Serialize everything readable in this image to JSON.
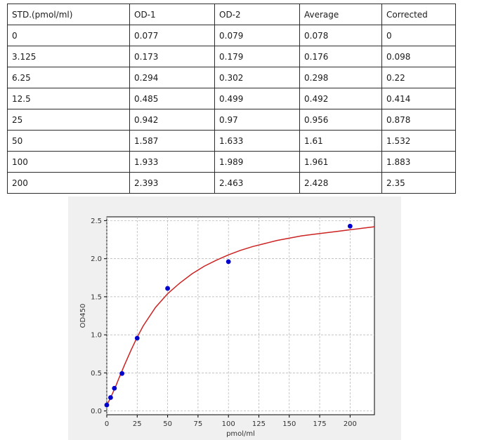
{
  "table": {
    "headers": [
      "STD.(pmol/ml)",
      "OD-1",
      "OD-2",
      "Average",
      "Corrected"
    ],
    "rows": [
      [
        "0",
        "0.077",
        "0.079",
        "0.078",
        "0"
      ],
      [
        "3.125",
        "0.173",
        "0.179",
        "0.176",
        "0.098"
      ],
      [
        "6.25",
        "0.294",
        "0.302",
        "0.298",
        "0.22"
      ],
      [
        "12.5",
        "0.485",
        "0.499",
        "0.492",
        "0.414"
      ],
      [
        "25",
        "0.942",
        "0.97",
        "0.956",
        "0.878"
      ],
      [
        "50",
        "1.587",
        "1.633",
        "1.61",
        "1.532"
      ],
      [
        "100",
        "1.933",
        "1.989",
        "1.961",
        "1.883"
      ],
      [
        "200",
        "2.393",
        "2.463",
        "2.428",
        "2.35"
      ]
    ]
  },
  "chart_data": {
    "type": "scatter",
    "xlabel": "pmol/ml",
    "ylabel": "OD450",
    "xlim": [
      0,
      220
    ],
    "ylim": [
      -0.05,
      2.55
    ],
    "xticks": [
      0,
      25,
      50,
      75,
      100,
      125,
      150,
      175,
      200
    ],
    "yticks": [
      0.0,
      0.5,
      1.0,
      1.5,
      2.0,
      2.5
    ],
    "grid": true,
    "points": {
      "x": [
        0,
        3.125,
        6.25,
        12.5,
        25,
        50,
        100,
        200
      ],
      "y": [
        0.078,
        0.176,
        0.298,
        0.492,
        0.956,
        1.61,
        1.961,
        2.428
      ],
      "color": "#0000cc"
    },
    "fit_curve": {
      "color": "#cc2222",
      "x": [
        0,
        2.5,
        5,
        7.5,
        10,
        15,
        20,
        25,
        30,
        40,
        50,
        60,
        70,
        80,
        90,
        100,
        110,
        120,
        130,
        140,
        150,
        160,
        170,
        180,
        190,
        200,
        210,
        220
      ],
      "y": [
        0.08,
        0.15,
        0.24,
        0.33,
        0.43,
        0.62,
        0.8,
        0.97,
        1.12,
        1.36,
        1.54,
        1.68,
        1.8,
        1.9,
        1.98,
        2.05,
        2.11,
        2.16,
        2.2,
        2.24,
        2.27,
        2.3,
        2.32,
        2.34,
        2.36,
        2.38,
        2.4,
        2.42
      ]
    }
  }
}
